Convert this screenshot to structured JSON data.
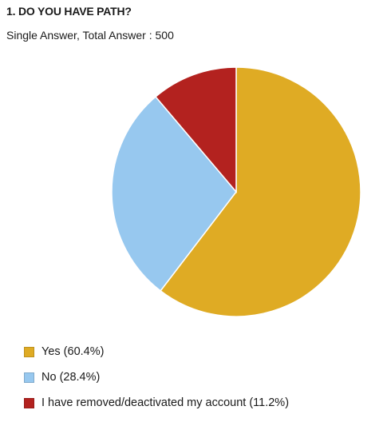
{
  "chart_data": {
    "type": "pie",
    "title": "1. DO YOU HAVE PATH?",
    "subtitle": "Single Answer, Total Answer : 500",
    "slices": [
      {
        "label": "Yes (60.4%)",
        "value": 60.4,
        "color": "#dfab24"
      },
      {
        "label": "No (28.4%)",
        "value": 28.4,
        "color": "#97c8ef"
      },
      {
        "label": "I have removed/deactivated my account (11.2%)",
        "value": 11.2,
        "color": "#b3221f"
      }
    ],
    "legend_position": "bottom-left"
  }
}
